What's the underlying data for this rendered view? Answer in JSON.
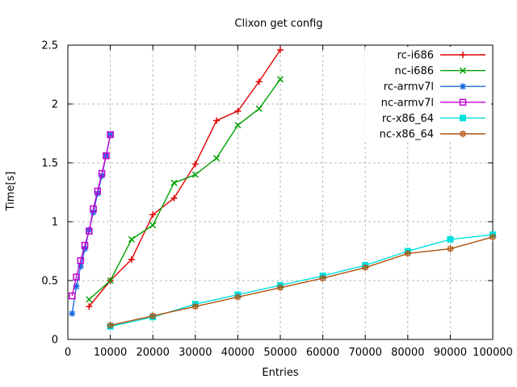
{
  "chart_data": {
    "type": "line",
    "title": "Clixon get config",
    "xlabel": "Entries",
    "ylabel": "Time[s]",
    "xlim": [
      0,
      100000
    ],
    "ylim": [
      0,
      2.5
    ],
    "x_ticks": [
      0,
      10000,
      20000,
      30000,
      40000,
      50000,
      60000,
      70000,
      80000,
      90000,
      100000
    ],
    "y_ticks": [
      0,
      0.5,
      1,
      1.5,
      2,
      2.5
    ],
    "grid": true,
    "grid_color": "#b8b8b8",
    "legend_position": "top-right-inside",
    "series": [
      {
        "name": "rc-i686",
        "color": "#e00000",
        "marker": "plus",
        "points": [
          [
            5000,
            0.28
          ],
          [
            10000,
            0.5
          ],
          [
            15000,
            0.68
          ],
          [
            20000,
            1.06
          ],
          [
            25000,
            1.2
          ],
          [
            30000,
            1.49
          ],
          [
            35000,
            1.86
          ],
          [
            40000,
            1.94
          ],
          [
            45000,
            2.19
          ],
          [
            50000,
            2.46
          ]
        ]
      },
      {
        "name": "nc-i686",
        "color": "#00a000",
        "marker": "cross",
        "points": [
          [
            5000,
            0.34
          ],
          [
            10000,
            0.5
          ],
          [
            15000,
            0.85
          ],
          [
            20000,
            0.97
          ],
          [
            25000,
            1.33
          ],
          [
            30000,
            1.4
          ],
          [
            35000,
            1.54
          ],
          [
            40000,
            1.82
          ],
          [
            45000,
            1.96
          ],
          [
            50000,
            2.21
          ]
        ]
      },
      {
        "name": "rc-armv7l",
        "color": "#1b6ae0",
        "marker": "asterisk",
        "points": [
          [
            1000,
            0.22
          ],
          [
            2000,
            0.45
          ],
          [
            3000,
            0.62
          ],
          [
            4000,
            0.77
          ],
          [
            5000,
            0.93
          ],
          [
            6000,
            1.08
          ],
          [
            7000,
            1.24
          ],
          [
            8000,
            1.39
          ],
          [
            9000,
            1.56
          ],
          [
            10000,
            1.74
          ]
        ]
      },
      {
        "name": "nc-armv7l",
        "color": "#c000d0",
        "marker": "square-open",
        "points": [
          [
            1000,
            0.37
          ],
          [
            2000,
            0.53
          ],
          [
            3000,
            0.67
          ],
          [
            4000,
            0.8
          ],
          [
            5000,
            0.92
          ],
          [
            6000,
            1.11
          ],
          [
            7000,
            1.26
          ],
          [
            8000,
            1.41
          ],
          [
            9000,
            1.56
          ],
          [
            10000,
            1.74
          ]
        ]
      },
      {
        "name": "rc-x86_64",
        "color": "#00e0e0",
        "marker": "square-filled",
        "points": [
          [
            10000,
            0.11
          ],
          [
            20000,
            0.19
          ],
          [
            30000,
            0.3
          ],
          [
            40000,
            0.38
          ],
          [
            50000,
            0.46
          ],
          [
            60000,
            0.54
          ],
          [
            70000,
            0.63
          ],
          [
            80000,
            0.75
          ],
          [
            90000,
            0.85
          ],
          [
            100000,
            0.89
          ]
        ]
      },
      {
        "name": "nc-x86_64",
        "color": "#b0500c",
        "marker": "square-plus",
        "points": [
          [
            10000,
            0.12
          ],
          [
            20000,
            0.2
          ],
          [
            30000,
            0.28
          ],
          [
            40000,
            0.36
          ],
          [
            50000,
            0.44
          ],
          [
            60000,
            0.52
          ],
          [
            70000,
            0.61
          ],
          [
            80000,
            0.73
          ],
          [
            90000,
            0.77
          ],
          [
            100000,
            0.87
          ]
        ]
      }
    ]
  }
}
